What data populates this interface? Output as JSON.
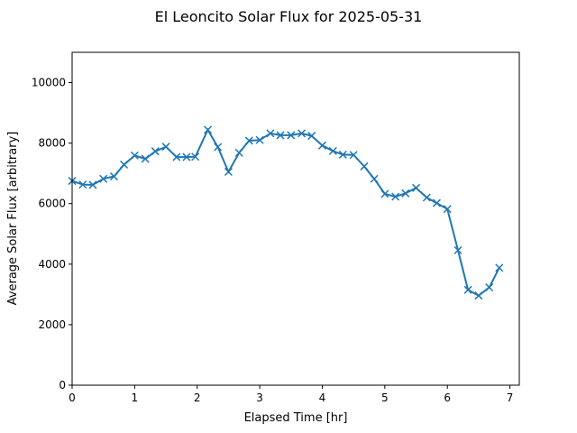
{
  "chart_data": {
    "type": "line",
    "title": "El Leoncito Solar Flux for 2025-05-31",
    "xlabel": "Elapsed Time [hr]",
    "ylabel": "Average Solar Flux [arbitrary]",
    "xlim": [
      0,
      7.15
    ],
    "ylim": [
      0,
      11000
    ],
    "xticks": [
      0,
      1,
      2,
      3,
      4,
      5,
      6,
      7
    ],
    "yticks": [
      0,
      2000,
      4000,
      6000,
      8000,
      10000
    ],
    "grid": false,
    "legend": "none",
    "marker": "x",
    "color": "#1f77b4",
    "series": [
      {
        "x": [
          0.0,
          0.17,
          0.33,
          0.5,
          0.67,
          0.83,
          1.0,
          1.17,
          1.33,
          1.5,
          1.67,
          1.83,
          1.97,
          2.17,
          2.33,
          2.5,
          2.67,
          2.83,
          3.0,
          3.17,
          3.33,
          3.5,
          3.67,
          3.83,
          4.0,
          4.17,
          4.33,
          4.5,
          4.67,
          4.83,
          5.0,
          5.17,
          5.33,
          5.5,
          5.67,
          5.83,
          6.0,
          6.17,
          6.33,
          6.5,
          6.67,
          6.83
        ],
        "y": [
          6750,
          6630,
          6620,
          6820,
          6900,
          7290,
          7590,
          7480,
          7730,
          7880,
          7540,
          7540,
          7550,
          8440,
          7870,
          7050,
          7680,
          8080,
          8100,
          8320,
          8260,
          8260,
          8320,
          8240,
          7920,
          7740,
          7620,
          7610,
          7230,
          6820,
          6320,
          6230,
          6340,
          6520,
          6200,
          6020,
          5820,
          4460,
          3150,
          2960,
          3230,
          3880
        ]
      }
    ]
  }
}
